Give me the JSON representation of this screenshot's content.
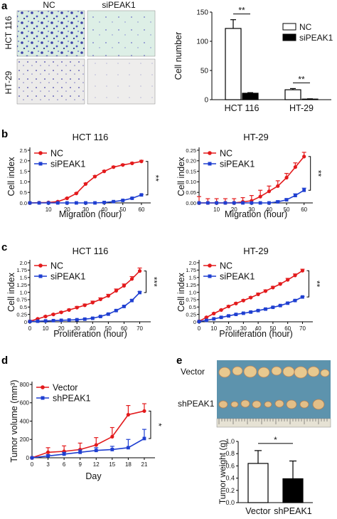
{
  "panels": {
    "a": {
      "letter": "a"
    },
    "b": {
      "letter": "b"
    },
    "c": {
      "letter": "c"
    },
    "d": {
      "letter": "d"
    },
    "e": {
      "letter": "e"
    }
  },
  "micro": {
    "col_labels": [
      "NC",
      "siPEAK1"
    ],
    "row_labels": [
      "HCT 116",
      "HT-29"
    ]
  },
  "tumor_photo": {
    "row_labels": [
      "Vector",
      "shPEAK1"
    ]
  },
  "chart_data": [
    {
      "id": "a_bar",
      "type": "bar",
      "title": "",
      "xlabel": "",
      "ylabel": "Cell number",
      "ylim": [
        0,
        150
      ],
      "yticks": [
        0,
        50,
        100,
        150
      ],
      "categories": [
        "HCT 116",
        "HT-29"
      ],
      "series": [
        {
          "name": "NC",
          "color": "#ffffff",
          "values": [
            122,
            17
          ],
          "errors": [
            15,
            2
          ]
        },
        {
          "name": "siPEAK1",
          "color": "#000000",
          "values": [
            11,
            1
          ],
          "errors": [
            1,
            0.5
          ]
        }
      ],
      "significance": [
        "**",
        "**"
      ],
      "legend": "top-right"
    },
    {
      "id": "b_hct116",
      "type": "line",
      "title": "HCT 116",
      "xlabel": "Migration (hour)",
      "ylabel": "Cell index",
      "xlim": [
        0,
        65
      ],
      "ylim": [
        0,
        2.5
      ],
      "xticks": [
        0,
        10,
        20,
        30,
        40,
        50,
        60
      ],
      "xticklabels": [
        "",
        "10",
        "20",
        "30",
        "40",
        "50",
        "60"
      ],
      "yticks": [
        0,
        0.5,
        1.0,
        1.5,
        2.0,
        2.5
      ],
      "yticklabels": [
        "0.0",
        "0.5",
        "1.0",
        "1.5",
        "2.0",
        "2.5"
      ],
      "x": [
        0,
        5,
        10,
        15,
        20,
        25,
        30,
        35,
        40,
        45,
        50,
        55,
        60
      ],
      "series": [
        {
          "name": "NC",
          "color": "#e31a1c",
          "marker": "circle",
          "values": [
            0,
            0.01,
            0.02,
            0.06,
            0.22,
            0.45,
            0.9,
            1.25,
            1.5,
            1.7,
            1.8,
            1.88,
            1.97
          ],
          "errors": [
            0,
            0,
            0,
            0.01,
            0.02,
            0.03,
            0.04,
            0.04,
            0.04,
            0.04,
            0.04,
            0.04,
            0.05
          ]
        },
        {
          "name": "siPEAK1",
          "color": "#1f3fd1",
          "marker": "square",
          "values": [
            0,
            0,
            0,
            0,
            0,
            0,
            0,
            0,
            0.02,
            0.06,
            0.12,
            0.22,
            0.38
          ],
          "errors": [
            0,
            0,
            0,
            0,
            0,
            0,
            0,
            0,
            0.01,
            0.01,
            0.01,
            0.02,
            0.02
          ]
        }
      ],
      "significance": "**",
      "legend": "top-left"
    },
    {
      "id": "b_ht29",
      "type": "line",
      "title": "HT-29",
      "xlabel": "Migration (hour)",
      "ylabel": "Cell index",
      "xlim": [
        0,
        65
      ],
      "ylim": [
        0,
        0.25
      ],
      "xticks": [
        0,
        10,
        20,
        30,
        40,
        50,
        60
      ],
      "xticklabels": [
        "",
        "10",
        "20",
        "30",
        "40",
        "50",
        "60"
      ],
      "yticks": [
        0,
        0.05,
        0.1,
        0.15,
        0.2,
        0.25
      ],
      "yticklabels": [
        "0.00",
        "0.05",
        "0.10",
        "0.15",
        "0.20",
        "0.25"
      ],
      "x": [
        0,
        5,
        10,
        15,
        20,
        25,
        30,
        35,
        40,
        45,
        50,
        55,
        60
      ],
      "series": [
        {
          "name": "NC",
          "color": "#e31a1c",
          "marker": "circle",
          "values": [
            0,
            0,
            0,
            0,
            0,
            0.005,
            0.01,
            0.03,
            0.055,
            0.08,
            0.12,
            0.17,
            0.22
          ],
          "errors": [
            0.03,
            0.02,
            0.02,
            0.02,
            0.02,
            0.02,
            0.025,
            0.03,
            0.025,
            0.025,
            0.02,
            0.02,
            0.02
          ]
        },
        {
          "name": "siPEAK1",
          "color": "#1f3fd1",
          "marker": "square",
          "values": [
            0,
            0,
            0,
            0,
            0,
            0,
            0,
            0,
            0,
            0.005,
            0.015,
            0.035,
            0.06
          ],
          "errors": [
            0,
            0,
            0,
            0,
            0,
            0,
            0,
            0,
            0,
            0.005,
            0.005,
            0.008,
            0.01
          ]
        }
      ],
      "significance": "**",
      "legend": "top-left"
    },
    {
      "id": "c_hct116",
      "type": "line",
      "title": "HCT 116",
      "xlabel": "Proliferation (hour)",
      "ylabel": "Cell index",
      "xlim": [
        0,
        77
      ],
      "ylim": [
        0,
        2.0
      ],
      "xticks": [
        0,
        10,
        20,
        30,
        40,
        50,
        60,
        70
      ],
      "xticklabels": [
        "0",
        "10",
        "20",
        "30",
        "40",
        "50",
        "60",
        "70"
      ],
      "yticks": [
        0,
        0.25,
        0.5,
        0.75,
        1.0,
        1.25,
        1.5,
        1.75,
        2.0
      ],
      "yticklabels": [
        "0",
        "0.25",
        "0.5",
        "0.75",
        "1.0",
        "1.25",
        "1.5",
        "1.75",
        "2.0"
      ],
      "x": [
        0,
        5,
        10,
        15,
        20,
        25,
        30,
        35,
        40,
        45,
        50,
        55,
        60,
        65,
        70
      ],
      "series": [
        {
          "name": "NC",
          "color": "#e31a1c",
          "marker": "circle",
          "values": [
            0.02,
            0.1,
            0.18,
            0.25,
            0.32,
            0.4,
            0.48,
            0.56,
            0.65,
            0.76,
            0.88,
            1.05,
            1.22,
            1.45,
            1.72
          ],
          "errors": [
            0,
            0.01,
            0.02,
            0.02,
            0.03,
            0.03,
            0.04,
            0.04,
            0.05,
            0.05,
            0.05,
            0.06,
            0.06,
            0.08,
            0.1
          ]
        },
        {
          "name": "siPEAK1",
          "color": "#1f3fd1",
          "marker": "square",
          "values": [
            0.01,
            0.02,
            0.03,
            0.04,
            0.05,
            0.06,
            0.07,
            0.09,
            0.12,
            0.18,
            0.26,
            0.38,
            0.52,
            0.72,
            0.99
          ],
          "errors": [
            0,
            0,
            0,
            0,
            0,
            0,
            0.01,
            0.01,
            0.01,
            0.01,
            0.02,
            0.02,
            0.02,
            0.03,
            0.03
          ]
        }
      ],
      "significance": "***",
      "legend": "top-left"
    },
    {
      "id": "c_ht29",
      "type": "line",
      "title": "HT-29",
      "xlabel": "Proliferation (hour)",
      "ylabel": "Cell index",
      "xlim": [
        0,
        77
      ],
      "ylim": [
        0,
        2.0
      ],
      "xticks": [
        0,
        10,
        20,
        30,
        40,
        50,
        60,
        70
      ],
      "xticklabels": [
        "0",
        "10",
        "20",
        "30",
        "40",
        "50",
        "60",
        "70"
      ],
      "yticks": [
        0,
        0.25,
        0.5,
        0.75,
        1.0,
        1.25,
        1.5,
        1.75,
        2.0
      ],
      "yticklabels": [
        "0",
        "0.25",
        "0.5",
        "0.75",
        "1.0",
        "1.25",
        "1.5",
        "1.75",
        "2.0"
      ],
      "x": [
        0,
        5,
        10,
        15,
        20,
        25,
        30,
        35,
        40,
        45,
        50,
        55,
        60,
        65,
        70
      ],
      "series": [
        {
          "name": "NC",
          "color": "#e31a1c",
          "marker": "circle",
          "values": [
            0.02,
            0.15,
            0.28,
            0.4,
            0.52,
            0.62,
            0.72,
            0.82,
            0.93,
            1.04,
            1.16,
            1.28,
            1.42,
            1.57,
            1.73
          ],
          "errors": [
            0,
            0.01,
            0.02,
            0.02,
            0.03,
            0.03,
            0.03,
            0.03,
            0.04,
            0.04,
            0.04,
            0.04,
            0.05,
            0.05,
            0.05
          ]
        },
        {
          "name": "siPEAK1",
          "color": "#1f3fd1",
          "marker": "square",
          "values": [
            0.01,
            0.05,
            0.1,
            0.15,
            0.2,
            0.25,
            0.29,
            0.33,
            0.38,
            0.43,
            0.49,
            0.55,
            0.63,
            0.72,
            0.84
          ],
          "errors": [
            0,
            0,
            0,
            0.01,
            0.01,
            0.01,
            0.01,
            0.01,
            0.01,
            0.01,
            0.01,
            0.01,
            0.02,
            0.02,
            0.02
          ]
        }
      ],
      "significance": "**",
      "legend": "top-left"
    },
    {
      "id": "d_tumor_volume",
      "type": "line",
      "title": "",
      "xlabel": "Day",
      "ylabel": "Tumor volume (mm³)",
      "xlim": [
        0,
        23
      ],
      "ylim": [
        0,
        800
      ],
      "xticks": [
        0,
        3,
        6,
        9,
        12,
        15,
        18,
        21
      ],
      "xticklabels": [
        "0",
        "3",
        "6",
        "9",
        "12",
        "15",
        "18",
        "21"
      ],
      "yticks": [
        0,
        200,
        400,
        600,
        800
      ],
      "yticklabels": [
        "0",
        "200",
        "400",
        "600",
        "800"
      ],
      "x": [
        0,
        3,
        6,
        9,
        12,
        15,
        18,
        21
      ],
      "series": [
        {
          "name": "Vector",
          "color": "#e31a1c",
          "marker": "circle",
          "values": [
            0,
            60,
            70,
            90,
            140,
            230,
            470,
            510
          ],
          "errors": [
            0,
            50,
            60,
            70,
            80,
            100,
            100,
            80
          ]
        },
        {
          "name": "shPEAK1",
          "color": "#1f3fd1",
          "marker": "square",
          "values": [
            0,
            20,
            40,
            60,
            80,
            90,
            110,
            210
          ],
          "errors": [
            0,
            15,
            20,
            25,
            30,
            35,
            90,
            100
          ]
        }
      ],
      "significance": "*",
      "legend": "top-left"
    },
    {
      "id": "e_tumor_weight",
      "type": "bar",
      "title": "",
      "xlabel": "",
      "ylabel": "Tumor weight (g)",
      "ylim": [
        0,
        1.0
      ],
      "yticks": [
        0,
        0.2,
        0.4,
        0.6,
        0.8,
        1.0
      ],
      "yticklabels": [
        "0.0",
        "0.2",
        "0.4",
        "0.6",
        "0.8",
        "1.0"
      ],
      "categories": [
        "Vector",
        "shPEAK1"
      ],
      "values": [
        0.64,
        0.39
      ],
      "errors": [
        0.21,
        0.29
      ],
      "colors": [
        "#ffffff",
        "#000000"
      ],
      "significance": "*"
    }
  ]
}
